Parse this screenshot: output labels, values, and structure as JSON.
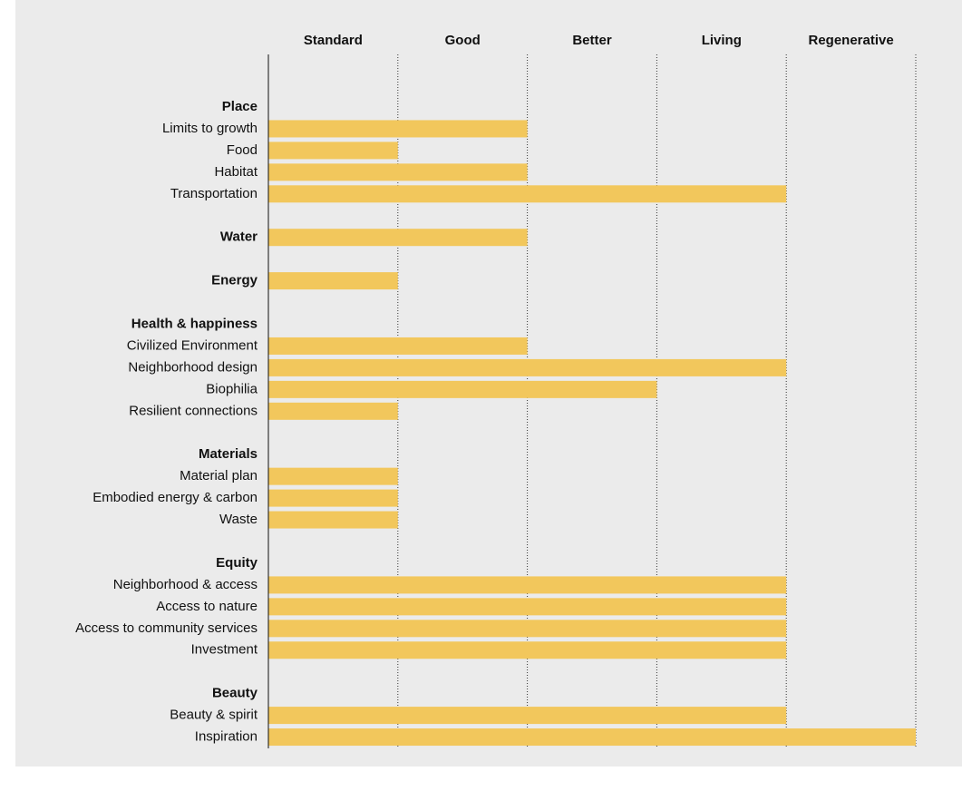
{
  "chart_data": {
    "type": "bar",
    "orientation": "horizontal",
    "color": "#f2c75c",
    "levels": [
      "Standard",
      "Good",
      "Better",
      "Living",
      "Regenerative"
    ],
    "xlim": [
      0,
      5
    ],
    "xticks": [
      1,
      2,
      3,
      4,
      5
    ],
    "grid": true,
    "groups": [
      {
        "name": "Place",
        "value": null,
        "items": [
          {
            "name": "Limits to growth",
            "value": 2
          },
          {
            "name": "Food",
            "value": 1
          },
          {
            "name": "Habitat",
            "value": 2
          },
          {
            "name": "Transportation",
            "value": 4
          }
        ]
      },
      {
        "name": "Water",
        "value": 2,
        "items": []
      },
      {
        "name": "Energy",
        "value": 1,
        "items": []
      },
      {
        "name": "Health & happiness",
        "value": null,
        "items": [
          {
            "name": "Civilized Environment",
            "value": 2
          },
          {
            "name": "Neighborhood design",
            "value": 4
          },
          {
            "name": "Biophilia",
            "value": 3
          },
          {
            "name": "Resilient connections",
            "value": 1
          }
        ]
      },
      {
        "name": "Materials",
        "value": null,
        "items": [
          {
            "name": "Material plan",
            "value": 1
          },
          {
            "name": "Embodied energy & carbon",
            "value": 1
          },
          {
            "name": "Waste",
            "value": 1
          }
        ]
      },
      {
        "name": "Equity",
        "value": null,
        "items": [
          {
            "name": "Neighborhood & access",
            "value": 4
          },
          {
            "name": "Access to nature",
            "value": 4
          },
          {
            "name": "Access to community services",
            "value": 4
          },
          {
            "name": "Investment",
            "value": 4
          }
        ]
      },
      {
        "name": "Beauty",
        "value": null,
        "items": [
          {
            "name": "Beauty & spirit",
            "value": 4
          },
          {
            "name": "Inspiration",
            "value": 5
          }
        ]
      }
    ]
  }
}
